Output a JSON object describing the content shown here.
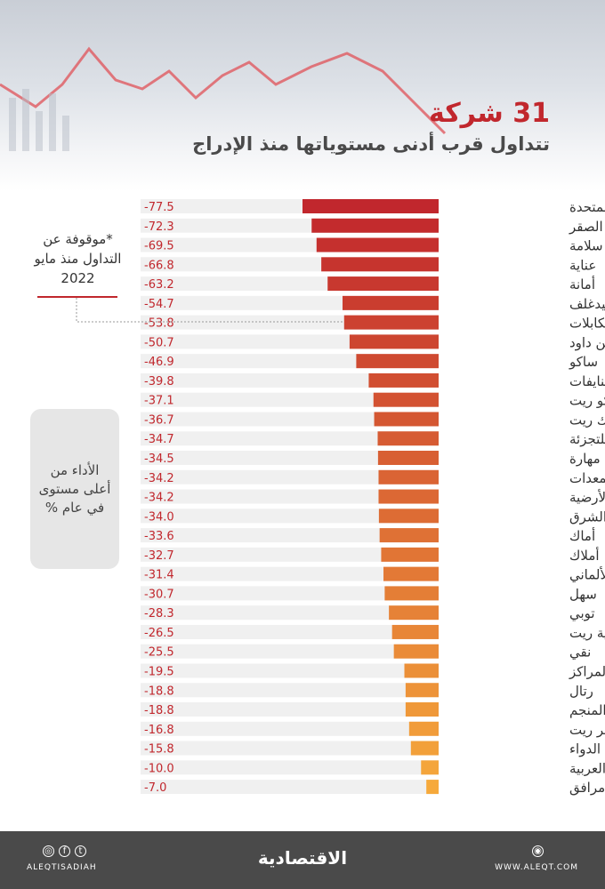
{
  "header": {
    "title": "31 شركة",
    "subtitle": "تتداول قرب أدنى مستوياتها منذ الإدراج"
  },
  "note": "*موقوفة عن التداول منذ مايو 2022",
  "legend_box": "الأداء من أعلى مستوى في عام %",
  "footer": {
    "social_handle": "ALEQTISADIAH",
    "brand": "الاقتصادية",
    "website": "WWW.ALEQT.COM",
    "icons": [
      "instagram-icon",
      "facebook-icon",
      "twitter-icon",
      "globe-icon"
    ]
  },
  "colors": {
    "start": "#c1272d",
    "end": "#f6a93b",
    "row_bg": "#f0f0f0"
  },
  "chart_data": {
    "type": "bar",
    "orientation": "horizontal",
    "grid": false,
    "categories": [
      "المتحدة",
      "الصقر",
      "سلامة",
      "عناية",
      "أمانة",
      "ميدغلف",
      "*الكابلات",
      "بن داود",
      "ساكو",
      "النايفات",
      "سيكو ريت",
      "ميفك ريت",
      "الإنماء ريت للتجزئة",
      "مهارة",
      "دار المعدات",
      "الخدمات الأرضية",
      "أنابيب الشرق",
      "أماك",
      "أملاك",
      "السعودي الألماني",
      "سهل",
      "توبي",
      "ملكية ريت",
      "نقي",
      "المراكز",
      "رتال",
      "المنجم",
      "الخبير ريت",
      "الدواء",
      "الحفر العربية",
      "مرافق"
    ],
    "values": [
      -77.5,
      -72.3,
      -69.5,
      -66.8,
      -63.2,
      -54.7,
      -53.8,
      -50.7,
      -46.9,
      -39.8,
      -37.1,
      -36.7,
      -34.7,
      -34.5,
      -34.2,
      -34.2,
      -34.0,
      -33.6,
      -32.7,
      -31.4,
      -30.7,
      -28.3,
      -26.5,
      -25.5,
      -19.5,
      -18.8,
      -18.8,
      -16.8,
      -15.8,
      -10.0,
      -7.0
    ],
    "value_labels": [
      "-77.5",
      "-72.3",
      "-69.5",
      "-66.8",
      "-63.2",
      "-54.7",
      "-53.8",
      "-50.7",
      "-46.9",
      "-39.8",
      "-37.1",
      "-36.7",
      "-34.7",
      "-34.5",
      "-34.2",
      "-34.2",
      "-34.0",
      "-33.6",
      "-32.7",
      "-31.4",
      "-30.7",
      "-28.3",
      "-26.5",
      "-25.5",
      "-19.5",
      "-18.8",
      "-18.8",
      "-16.8",
      "-15.8",
      "-10.0",
      "-7.0"
    ],
    "xlim": [
      -85,
      0
    ]
  }
}
